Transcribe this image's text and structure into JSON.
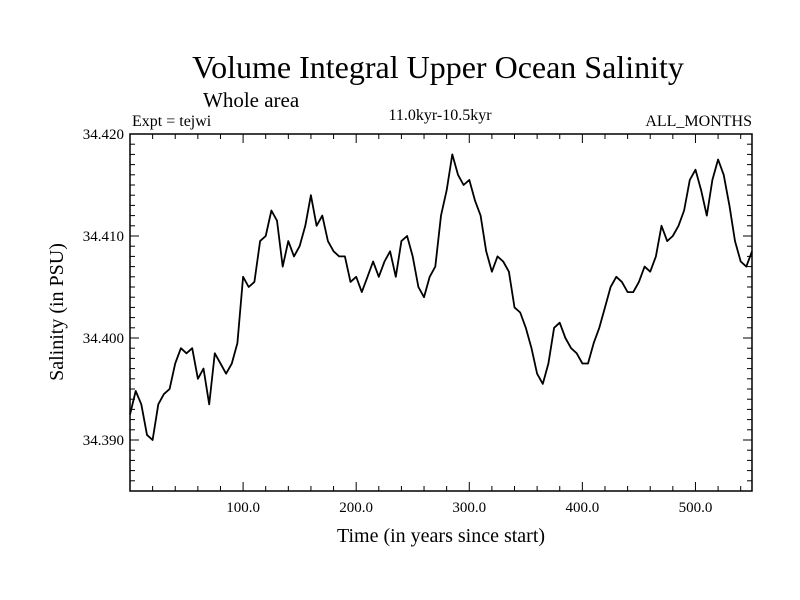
{
  "chart_data": {
    "type": "line",
    "title": "Volume Integral Upper Ocean Salinity",
    "subtitle": "Whole area",
    "left_label": "Expt = tejwi",
    "center_label": "11.0kyr-10.5kyr",
    "right_label": "ALL_MONTHS",
    "xlabel": "Time (in years since start)",
    "ylabel": "Salinity (in PSU)",
    "xlim": [
      0,
      550
    ],
    "ylim": [
      34.385,
      34.42
    ],
    "x_ticks": [
      100,
      200,
      300,
      400,
      500
    ],
    "x_tick_labels": [
      "100.0",
      "200.0",
      "300.0",
      "400.0",
      "500.0"
    ],
    "y_ticks": [
      34.39,
      34.4,
      34.41,
      34.42
    ],
    "y_tick_labels": [
      "34.390",
      "34.400",
      "34.410",
      "34.420"
    ],
    "series": [
      {
        "name": "salinity",
        "color": "#000000",
        "x": [
          0,
          5,
          10,
          15,
          20,
          25,
          30,
          35,
          40,
          45,
          50,
          55,
          60,
          65,
          70,
          75,
          80,
          85,
          90,
          95,
          100,
          105,
          110,
          115,
          120,
          125,
          130,
          135,
          140,
          145,
          150,
          155,
          160,
          165,
          170,
          175,
          180,
          185,
          190,
          195,
          200,
          205,
          210,
          215,
          220,
          225,
          230,
          235,
          240,
          245,
          250,
          255,
          260,
          265,
          270,
          275,
          280,
          285,
          290,
          295,
          300,
          305,
          310,
          315,
          320,
          325,
          330,
          335,
          340,
          345,
          350,
          355,
          360,
          365,
          370,
          375,
          380,
          385,
          390,
          395,
          400,
          405,
          410,
          415,
          420,
          425,
          430,
          435,
          440,
          445,
          450,
          455,
          460,
          465,
          470,
          475,
          480,
          485,
          490,
          495,
          500,
          505,
          510,
          515,
          520,
          525,
          530,
          535,
          540,
          545,
          550
        ],
        "values": [
          34.3925,
          34.3948,
          34.3935,
          34.3905,
          34.39,
          34.3935,
          34.3945,
          34.395,
          34.3975,
          34.399,
          34.3985,
          34.399,
          34.396,
          34.397,
          34.3935,
          34.3985,
          34.3975,
          34.3965,
          34.3975,
          34.3995,
          34.406,
          34.405,
          34.4055,
          34.4095,
          34.41,
          34.4125,
          34.4115,
          34.407,
          34.4095,
          34.408,
          34.409,
          34.411,
          34.414,
          34.411,
          34.412,
          34.4095,
          34.4085,
          34.408,
          34.408,
          34.4055,
          34.406,
          34.4045,
          34.406,
          34.4075,
          34.406,
          34.4075,
          34.4085,
          34.406,
          34.4095,
          34.41,
          34.408,
          34.405,
          34.404,
          34.406,
          34.407,
          34.412,
          34.4145,
          34.418,
          34.416,
          34.415,
          34.4155,
          34.4135,
          34.412,
          34.4085,
          34.4065,
          34.408,
          34.4075,
          34.4065,
          34.403,
          34.4025,
          34.401,
          34.399,
          34.3965,
          34.3955,
          34.3975,
          34.401,
          34.4015,
          34.4,
          34.399,
          34.3985,
          34.3975,
          34.3975,
          34.3995,
          34.401,
          34.403,
          34.405,
          34.406,
          34.4055,
          34.4045,
          34.4045,
          34.4055,
          34.407,
          34.4065,
          34.408,
          34.411,
          34.4095,
          34.41,
          34.411,
          34.4125,
          34.4155,
          34.4165,
          34.4145,
          34.412,
          34.4155,
          34.4175,
          34.416,
          34.413,
          34.4095,
          34.4075,
          34.407,
          34.4085
        ]
      }
    ]
  }
}
